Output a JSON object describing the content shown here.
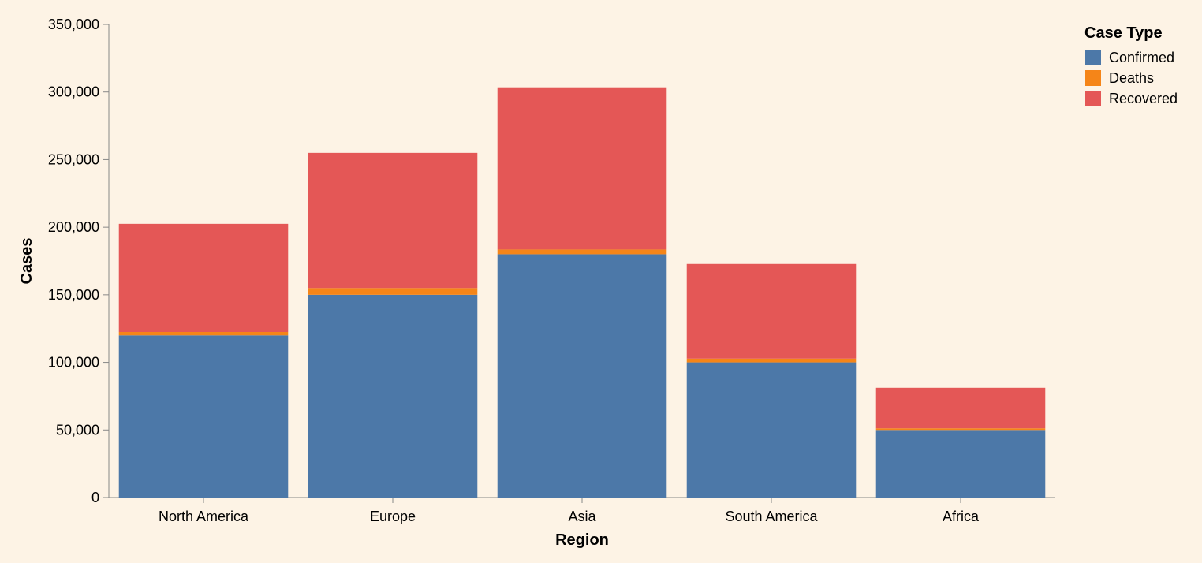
{
  "chart_data": {
    "type": "bar",
    "stacked": true,
    "categories": [
      "North America",
      "Europe",
      "Asia",
      "South America",
      "Africa"
    ],
    "series": [
      {
        "name": "Confirmed",
        "color": "#4c78a8",
        "values": [
          120000,
          150000,
          180000,
          100000,
          50000
        ]
      },
      {
        "name": "Deaths",
        "color": "#f58518",
        "values": [
          2500,
          5000,
          3500,
          2800,
          1200
        ]
      },
      {
        "name": "Recovered",
        "color": "#e45756",
        "values": [
          80000,
          100000,
          120000,
          70000,
          30000
        ]
      }
    ],
    "xlabel": "Region",
    "ylabel": "Cases",
    "ylim": [
      0,
      350000
    ],
    "yticks": [
      0,
      50000,
      100000,
      150000,
      200000,
      250000,
      300000,
      350000
    ],
    "grid": false,
    "legend": {
      "title": "Case Type",
      "position": "top-right"
    }
  }
}
